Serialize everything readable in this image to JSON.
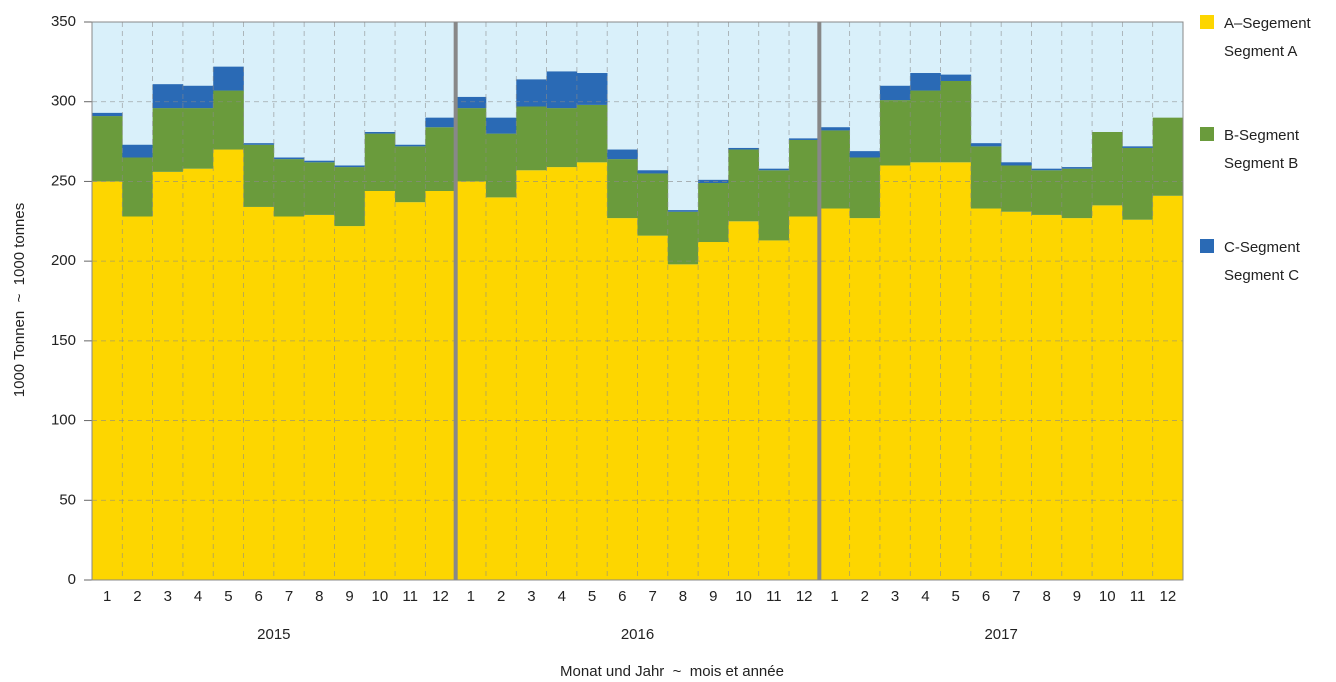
{
  "chart_data": {
    "type": "stacked_bar",
    "y_label": "1000 Tonnen  ~  1000 tonnes",
    "x_label": "Monat und Jahr  ~  mois et année",
    "categories": [
      "1",
      "2",
      "3",
      "4",
      "5",
      "6",
      "7",
      "8",
      "9",
      "10",
      "11",
      "12",
      "1",
      "2",
      "3",
      "4",
      "5",
      "6",
      "7",
      "8",
      "9",
      "10",
      "11",
      "12",
      "1",
      "2",
      "3",
      "4",
      "5",
      "6",
      "7",
      "8",
      "9",
      "10",
      "11",
      "12"
    ],
    "years": [
      "2015",
      "2016",
      "2017"
    ],
    "background": "#d9f0fa",
    "grid": true,
    "legend": "right",
    "ylim": [
      0,
      350
    ],
    "yticks": [
      0,
      50,
      100,
      150,
      200,
      250,
      300,
      350
    ],
    "series": [
      {
        "name": "A–Segement",
        "name2": "Segment A",
        "color": "#fdd600",
        "values": [
          250,
          228,
          256,
          258,
          270,
          234,
          228,
          229,
          222,
          244,
          237,
          244,
          250,
          240,
          257,
          259,
          262,
          227,
          216,
          198,
          212,
          225,
          213,
          228,
          233,
          227,
          260,
          262,
          262,
          233,
          231,
          229,
          227,
          235,
          226,
          241
        ]
      },
      {
        "name": "B-Segment",
        "name2": "Segment B",
        "color": "#6a9b3c",
        "values": [
          41,
          37,
          40,
          38,
          37,
          39,
          36,
          33,
          37,
          36,
          35,
          40,
          46,
          40,
          40,
          37,
          36,
          37,
          39,
          33,
          37,
          45,
          44,
          48,
          49,
          38,
          41,
          45,
          51,
          39,
          29,
          28,
          31,
          46,
          45,
          49
        ]
      },
      {
        "name": "C-Segment",
        "name2": "Segment C",
        "color": "#2a6ab5",
        "values": [
          2,
          8,
          15,
          14,
          15,
          1,
          1,
          1,
          1,
          1,
          1,
          6,
          7,
          10,
          17,
          23,
          20,
          6,
          2,
          1,
          2,
          1,
          1,
          1,
          2,
          4,
          9,
          11,
          4,
          2,
          2,
          1,
          1,
          0,
          1,
          0
        ]
      }
    ]
  }
}
